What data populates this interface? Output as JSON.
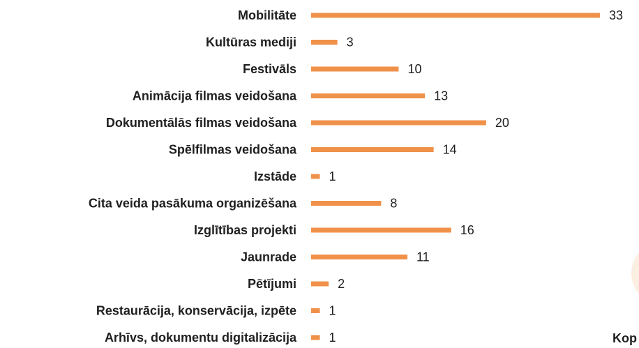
{
  "chart_data": {
    "type": "bar",
    "orientation": "horizontal",
    "categories": [
      "Mobilitāte",
      "Kultūras mediji",
      "Festivāls",
      "Animācija filmas veidošana",
      "Dokumentālās filmas veidošana",
      "Spēlfilmas veidošana",
      "Izstāde",
      "Cita veida pasākuma organizēšana",
      "Izglītības projekti",
      "Jaunrade",
      "Pētījumi",
      "Restaurācija, konservācija, izpēte",
      "Arhīvs, dokumentu digitalizācija"
    ],
    "values": [
      33,
      3,
      10,
      13,
      20,
      14,
      1,
      8,
      16,
      11,
      2,
      1,
      1
    ],
    "color": "#f0914a",
    "xlim": [
      0,
      33
    ],
    "annotation": "Kop"
  }
}
